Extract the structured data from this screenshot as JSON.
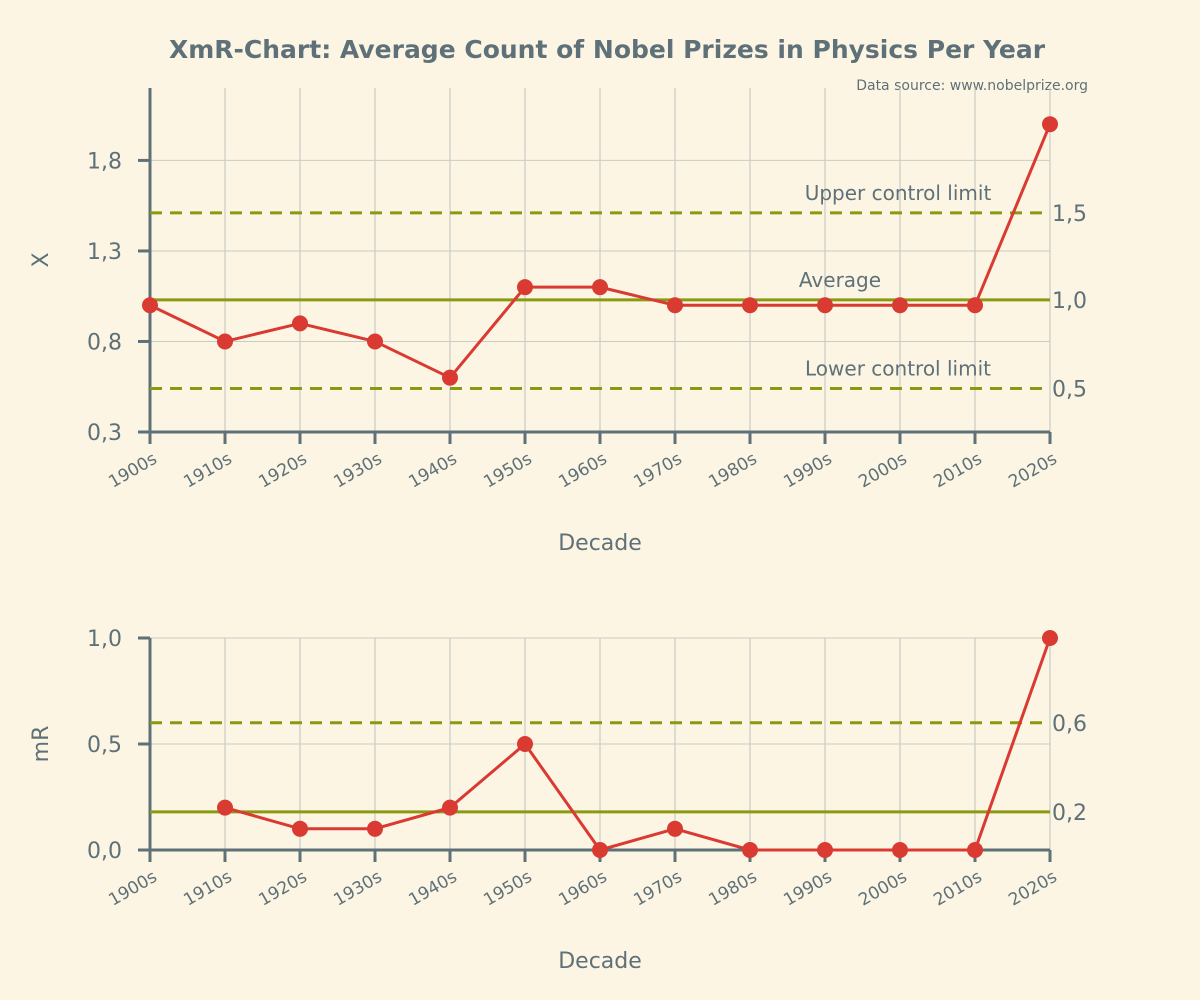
{
  "title": "XmR-Chart: Average Count of Nobel Prizes in Physics Per Year",
  "source": "Data source: www.nobelprize.org",
  "colors": {
    "background": "#fdf5e4",
    "text": "#5f7178",
    "series": "#d93a32",
    "limits": "#8a9a10",
    "grid": "#c9ccc2"
  },
  "chart_data": [
    {
      "type": "line",
      "panel": "x",
      "categories": [
        "1900s",
        "1910s",
        "1920s",
        "1930s",
        "1940s",
        "1950s",
        "1960s",
        "1970s",
        "1980s",
        "1990s",
        "2000s",
        "2010s",
        "2020s"
      ],
      "values": [
        1.0,
        0.8,
        0.9,
        0.8,
        0.6,
        1.1,
        1.1,
        1.0,
        1.0,
        1.0,
        1.0,
        1.0,
        2.0
      ],
      "xlabel": "Decade",
      "ylabel": "X",
      "ylim": [
        0.3,
        2.2
      ],
      "yticks": [
        0.3,
        0.8,
        1.3,
        1.8
      ],
      "ytick_labels": [
        "0,3",
        "0,8",
        "1,3",
        "1,8"
      ],
      "grid": true,
      "lines": [
        {
          "name": "Upper control limit",
          "value": 1.51,
          "label": "1,5",
          "style": "dashed"
        },
        {
          "name": "Average",
          "value": 1.03,
          "label": "1,0",
          "style": "solid"
        },
        {
          "name": "Lower control limit",
          "value": 0.54,
          "label": "0,5",
          "style": "dashed"
        }
      ]
    },
    {
      "type": "line",
      "panel": "mR",
      "categories": [
        "1900s",
        "1910s",
        "1920s",
        "1930s",
        "1940s",
        "1950s",
        "1960s",
        "1970s",
        "1980s",
        "1990s",
        "2000s",
        "2010s",
        "2020s"
      ],
      "values": [
        null,
        0.2,
        0.1,
        0.1,
        0.2,
        0.5,
        0.0,
        0.1,
        0.0,
        0.0,
        0.0,
        0.0,
        1.0
      ],
      "xlabel": "Decade",
      "ylabel": "mR",
      "ylim": [
        0.0,
        1.0
      ],
      "yticks": [
        0.0,
        0.5,
        1.0
      ],
      "ytick_labels": [
        "0,0",
        "0,5",
        "1,0"
      ],
      "grid": true,
      "lines": [
        {
          "value": 0.6,
          "label": "0,6",
          "style": "dashed"
        },
        {
          "value": 0.18,
          "label": "0,2",
          "style": "solid"
        }
      ]
    }
  ]
}
